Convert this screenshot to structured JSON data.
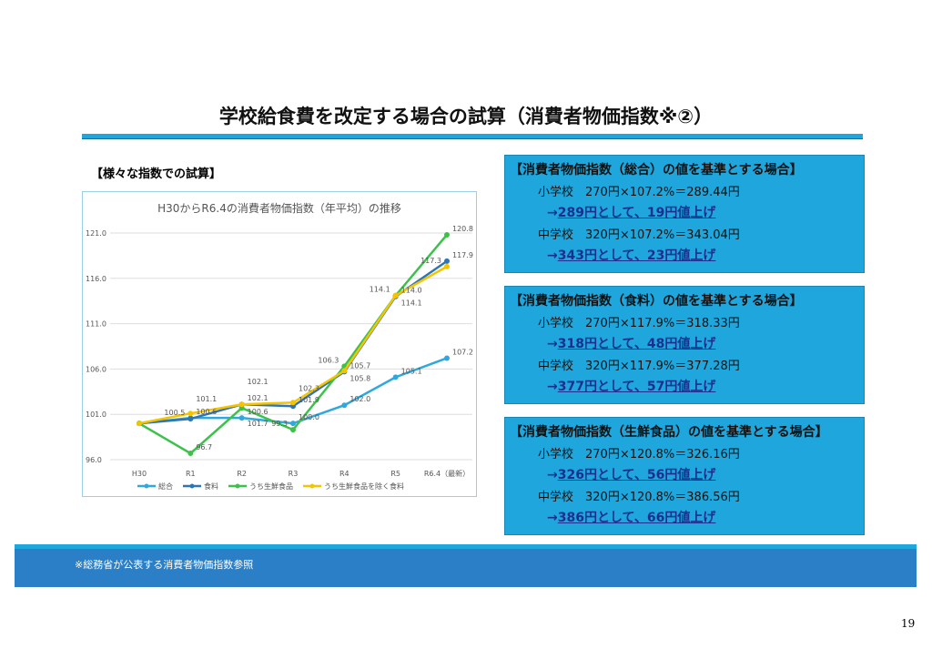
{
  "title": "学校給食費を改定する場合の試算（消費者物価指数※②）",
  "subtitle": "【様々な指数での試算】",
  "boxes": [
    {
      "heading": "【消費者物価指数（総合）の値を基準とする場合】",
      "elem": "小学校　270円×107.2%＝289.44円",
      "elem_result": "289円として、19円値上げ",
      "mid": "中学校　320円×107.2%＝343.04円",
      "mid_result": "343円として、23円値上げ"
    },
    {
      "heading": "【消費者物価指数（食料）の値を基準とする場合】",
      "elem": "小学校　270円×117.9%＝318.33円",
      "elem_result": "318円として、48円値上げ",
      "mid": "中学校　320円×117.9%＝377.28円",
      "mid_result": "377円として、57円値上げ"
    },
    {
      "heading": "【消費者物価指数（生鮮食品）の値を基準とする場合】",
      "elem": "小学校　270円×120.8%＝326.16円",
      "elem_result": "326円として、56円値上げ",
      "mid": "中学校　320円×120.8%＝386.56円",
      "mid_result": "386円として、66円値上げ"
    }
  ],
  "arrow": "→",
  "footnote": "※総務省が公表する消費者物価指数参照",
  "page_number": "19",
  "chart_data": {
    "type": "line",
    "title": "H30からR6.4の消費者物価指数（年平均）の推移",
    "categories": [
      "H30",
      "R1",
      "R2",
      "R3",
      "R4",
      "R5",
      "R6.4（最新）"
    ],
    "ylim": [
      96,
      121
    ],
    "yticks": [
      "96.0",
      "101.0",
      "106.0",
      "111.0",
      "116.0",
      "121.0"
    ],
    "legend": "bottom",
    "series": [
      {
        "name": "総合",
        "color": "#2fa8e0",
        "values": [
          100.0,
          100.6,
          100.6,
          100.0,
          102.0,
          105.1,
          107.2
        ]
      },
      {
        "name": "食料",
        "color": "#2e75b6",
        "values": [
          100.0,
          100.5,
          102.1,
          101.9,
          105.7,
          114.0,
          117.9
        ]
      },
      {
        "name": "うち生鮮食品",
        "color": "#3cc24a",
        "values": [
          100.0,
          96.7,
          101.7,
          99.3,
          106.3,
          114.1,
          120.8
        ]
      },
      {
        "name": "うち生鮮食品を除く食料",
        "color": "#f5c400",
        "values": [
          100.0,
          101.1,
          102.1,
          102.3,
          105.8,
          114.1,
          117.3
        ]
      }
    ]
  }
}
